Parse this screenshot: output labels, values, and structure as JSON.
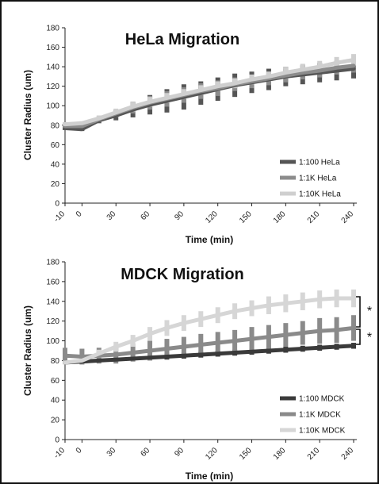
{
  "chart_data": [
    {
      "type": "line",
      "title": "HeLa Migration",
      "xlabel": "Time (min)",
      "ylabel": "Cluster Radius (um)",
      "ylim": [
        0,
        180
      ],
      "yticks": [
        "0",
        "20",
        "40",
        "60",
        "80",
        "100",
        "120",
        "140",
        "160",
        "180"
      ],
      "categories": [
        "-10",
        "0",
        "15",
        "30",
        "45",
        "60",
        "75",
        "90",
        "105",
        "120",
        "135",
        "150",
        "165",
        "180",
        "195",
        "210",
        "225",
        "240"
      ],
      "xtick_labels": [
        "-10",
        "0",
        "30",
        "60",
        "90",
        "120",
        "150",
        "180",
        "210",
        "240"
      ],
      "legend_position": "bottom-right",
      "series": [
        {
          "name": "1:100 HeLa",
          "color": "#555555",
          "values": [
            77,
            76,
            85,
            90,
            96,
            101,
            105,
            109,
            113,
            117,
            121,
            124,
            127,
            130,
            132,
            134,
            136,
            138
          ],
          "errors": [
            2,
            2,
            3,
            5,
            8,
            10,
            12,
            13,
            12,
            12,
            12,
            11,
            11,
            10,
            10,
            10,
            10,
            10
          ]
        },
        {
          "name": "1:1K HeLa",
          "color": "#8c8c8c",
          "values": [
            79,
            79,
            86,
            92,
            98,
            103,
            107,
            111,
            115,
            118,
            122,
            125,
            128,
            131,
            134,
            136,
            139,
            141
          ],
          "errors": [
            2,
            2,
            3,
            4,
            6,
            7,
            8,
            8,
            8,
            8,
            7,
            7,
            7,
            7,
            7,
            7,
            7,
            7
          ]
        },
        {
          "name": "1:10K HeLa",
          "color": "#cfcfcf",
          "values": [
            81,
            82,
            87,
            93,
            99,
            104,
            108,
            112,
            116,
            120,
            123,
            127,
            130,
            134,
            137,
            140,
            144,
            147
          ],
          "errors": [
            2,
            2,
            3,
            4,
            5,
            5,
            5,
            5,
            5,
            5,
            5,
            5,
            5,
            6,
            6,
            6,
            6,
            6
          ]
        }
      ]
    },
    {
      "type": "line",
      "title": "MDCK Migration",
      "xlabel": "Time (min)",
      "ylabel": "Cluster Radius (um)",
      "ylim": [
        0,
        180
      ],
      "yticks": [
        "0",
        "20",
        "40",
        "60",
        "80",
        "100",
        "120",
        "140",
        "160",
        "180"
      ],
      "categories": [
        "-10",
        "0",
        "15",
        "30",
        "45",
        "60",
        "75",
        "90",
        "105",
        "120",
        "135",
        "150",
        "165",
        "180",
        "195",
        "210",
        "225",
        "240"
      ],
      "xtick_labels": [
        "-10",
        "0",
        "30",
        "60",
        "90",
        "120",
        "150",
        "180",
        "210",
        "240"
      ],
      "legend_position": "bottom-right",
      "annotations": [
        "*",
        "*"
      ],
      "series": [
        {
          "name": "1:100 MDCK",
          "color": "#3a3a3a",
          "values": [
            78,
            79,
            80,
            81,
            82,
            83,
            84,
            85,
            86,
            87,
            88,
            89,
            90,
            91,
            92,
            93,
            94,
            95
          ],
          "errors": [
            1,
            1,
            1,
            2,
            2,
            2,
            3,
            3,
            3,
            3,
            3,
            3,
            3,
            3,
            3,
            3,
            3,
            3
          ]
        },
        {
          "name": "1:1K MDCK",
          "color": "#8a8a8a",
          "values": [
            85,
            84,
            85,
            86,
            88,
            90,
            92,
            94,
            96,
            98,
            100,
            102,
            104,
            106,
            108,
            110,
            111,
            113
          ],
          "errors": [
            8,
            8,
            8,
            9,
            9,
            10,
            10,
            10,
            11,
            11,
            11,
            12,
            12,
            12,
            12,
            13,
            13,
            13
          ]
        },
        {
          "name": "1:10K MDCK",
          "color": "#d6d6d6",
          "values": [
            78,
            80,
            87,
            94,
            100,
            107,
            113,
            118,
            122,
            126,
            130,
            133,
            136,
            138,
            140,
            142,
            143,
            143
          ],
          "errors": [
            2,
            3,
            4,
            5,
            6,
            7,
            8,
            8,
            8,
            8,
            8,
            8,
            9,
            9,
            9,
            9,
            9,
            9
          ]
        }
      ]
    }
  ]
}
